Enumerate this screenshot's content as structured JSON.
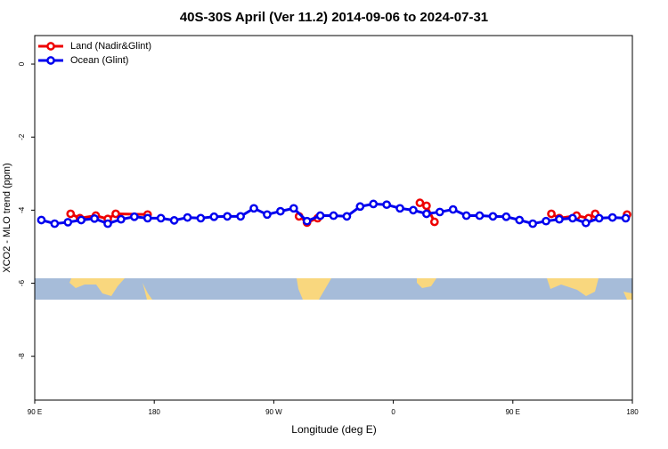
{
  "chart_data": {
    "type": "line",
    "title": "40S-30S April (Ver 11.2)   2014-09-06 to 2024-07-31",
    "x_label": "Longitude (deg E)",
    "y_label": "XCO2 - MLO trend (ppm)",
    "xlim": [
      90,
      540
    ],
    "ylim": [
      -9.2,
      0.78
    ],
    "xticks": [
      {
        "value": 90,
        "label": "90 E"
      },
      180,
      {
        "value": 270,
        "label": "90 W"
      },
      {
        "value": 360,
        "label": "0"
      },
      {
        "value": 450,
        "label": "90 E"
      },
      {
        "value": 540,
        "label": "180"
      }
    ],
    "yticks": [
      -8,
      -6,
      -4,
      -2,
      0
    ],
    "legend": "top-left",
    "series": [
      {
        "name": "Land (Nadir&Glint)",
        "color": "#ee0000",
        "x": [
          117,
          124,
          136,
          145,
          151,
          175,
          null,
          289,
          295,
          303,
          null,
          380,
          385,
          391,
          null,
          479,
          485,
          498,
          507,
          512,
          null,
          536
        ],
        "values": [
          -4.1,
          -4.22,
          -4.15,
          -4.24,
          -4.1,
          -4.12,
          null,
          -4.17,
          -4.34,
          -4.22,
          null,
          -3.8,
          -3.88,
          -4.32,
          null,
          -4.1,
          -4.22,
          -4.15,
          -4.22,
          -4.1,
          null,
          -4.12
        ]
      },
      {
        "name": "Ocean (Glint)",
        "color": "#0000ee",
        "x": [
          95,
          105,
          115,
          125,
          135,
          145,
          155,
          165,
          175,
          185,
          195,
          205,
          215,
          225,
          235,
          245,
          255,
          265,
          275,
          285,
          295,
          305,
          315,
          325,
          335,
          345,
          355,
          365,
          375,
          385,
          395,
          405,
          415,
          425,
          435,
          445,
          455,
          465,
          475,
          485,
          495,
          505,
          515,
          525,
          535
        ],
        "values": [
          -4.27,
          -4.37,
          -4.33,
          -4.27,
          -4.23,
          -4.37,
          -4.25,
          -4.18,
          -4.22,
          -4.22,
          -4.28,
          -4.2,
          -4.22,
          -4.18,
          -4.17,
          -4.17,
          -3.95,
          -4.12,
          -4.03,
          -3.95,
          -4.3,
          -4.15,
          -4.15,
          -4.17,
          -3.9,
          -3.83,
          -3.85,
          -3.95,
          -4.0,
          -4.1,
          -4.05,
          -3.98,
          -4.15,
          -4.15,
          -4.17,
          -4.18,
          -4.27,
          -4.37,
          -4.3,
          -4.25,
          -4.22,
          -4.35,
          -4.22,
          -4.2,
          -4.22
        ]
      }
    ]
  }
}
